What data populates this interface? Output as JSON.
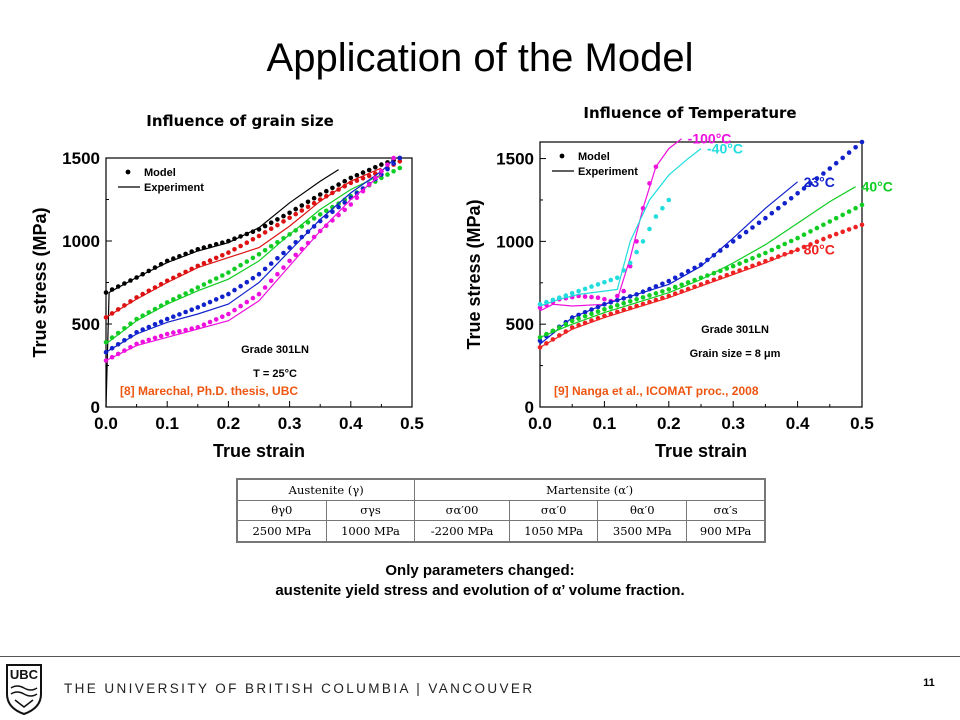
{
  "slide": {
    "title": "Application of the Model",
    "note_line1": "Only parameters changed:",
    "note_line2": "austenite yield stress and evolution of α’ volume fraction.",
    "footer": "THE UNIVERSITY OF BRITISH COLUMBIA | VANCOUVER",
    "page_number": "11",
    "logo_text": "UBC"
  },
  "chart_data": [
    {
      "type": "line",
      "title": "Influence of grain size",
      "xlabel": "True strain",
      "ylabel": "True stress (MPa)",
      "xlim": [
        0.0,
        0.5
      ],
      "ylim": [
        0,
        1500
      ],
      "xticks": [
        "0.0",
        "0.1",
        "0.2",
        "0.3",
        "0.4",
        "0.5"
      ],
      "yticks": [
        "0",
        "500",
        "1000",
        "1500"
      ],
      "legend": [
        "Model",
        "Experiment"
      ],
      "legend_position": "top-left",
      "annotations": [
        "Grade 301LN",
        "T = 25°C"
      ],
      "source": "[8] Marechal, Ph.D. thesis, UBC",
      "series": [
        {
          "color": "#000000",
          "model": {
            "x": [
              0.0,
              0.05,
              0.1,
              0.15,
              0.2,
              0.25,
              0.3,
              0.35,
              0.4,
              0.45,
              0.48
            ],
            "y": [
              690,
              780,
              880,
              950,
              1000,
              1070,
              1170,
              1280,
              1380,
              1460,
              1500
            ]
          },
          "experiment": {
            "x": [
              0.0,
              0.005,
              0.01,
              0.05,
              0.1,
              0.15,
              0.2,
              0.25,
              0.3,
              0.35,
              0.38
            ],
            "y": [
              0,
              690,
              700,
              780,
              870,
              940,
              990,
              1080,
              1230,
              1360,
              1430
            ]
          }
        },
        {
          "color": "#dd1111",
          "model": {
            "x": [
              0.0,
              0.05,
              0.1,
              0.15,
              0.2,
              0.25,
              0.3,
              0.35,
              0.4,
              0.45,
              0.48
            ],
            "y": [
              540,
              660,
              760,
              850,
              930,
              1030,
              1140,
              1250,
              1350,
              1420,
              1480
            ]
          },
          "experiment": {
            "x": [
              0.0,
              0.05,
              0.1,
              0.15,
              0.2,
              0.25,
              0.3,
              0.35,
              0.4,
              0.45
            ],
            "y": [
              540,
              650,
              750,
              840,
              900,
              960,
              1090,
              1240,
              1360,
              1440
            ]
          }
        },
        {
          "color": "#11cc22",
          "model": {
            "x": [
              0.0,
              0.05,
              0.1,
              0.15,
              0.2,
              0.25,
              0.3,
              0.35,
              0.4,
              0.45,
              0.48
            ],
            "y": [
              390,
              530,
              630,
              720,
              810,
              920,
              1040,
              1160,
              1270,
              1380,
              1440
            ]
          },
          "experiment": {
            "x": [
              0.0,
              0.05,
              0.1,
              0.15,
              0.2,
              0.25,
              0.3,
              0.35,
              0.4,
              0.45
            ],
            "y": [
              380,
              520,
              620,
              700,
              770,
              880,
              1040,
              1190,
              1310,
              1400
            ]
          }
        },
        {
          "color": "#1122cc",
          "model": {
            "x": [
              0.0,
              0.05,
              0.1,
              0.15,
              0.2,
              0.25,
              0.3,
              0.35,
              0.4,
              0.45,
              0.48
            ],
            "y": [
              330,
              450,
              530,
              600,
              680,
              800,
              960,
              1120,
              1260,
              1400,
              1500
            ]
          },
          "experiment": {
            "x": [
              0.0,
              0.05,
              0.1,
              0.15,
              0.2,
              0.25,
              0.3,
              0.35,
              0.4,
              0.45,
              0.47
            ],
            "y": [
              330,
              440,
              510,
              560,
              620,
              750,
              940,
              1130,
              1290,
              1420,
              1490
            ]
          }
        },
        {
          "color": "#ee11dd",
          "model": {
            "x": [
              0.0,
              0.05,
              0.1,
              0.15,
              0.2,
              0.25,
              0.3,
              0.35,
              0.4,
              0.45,
              0.47
            ],
            "y": [
              280,
              380,
              440,
              480,
              560,
              680,
              880,
              1060,
              1220,
              1420,
              1500
            ]
          },
          "experiment": {
            "x": [
              0.0,
              0.05,
              0.1,
              0.15,
              0.2,
              0.25,
              0.3,
              0.35,
              0.4,
              0.45
            ],
            "y": [
              280,
              370,
              420,
              470,
              520,
              640,
              850,
              1060,
              1250,
              1400
            ]
          }
        }
      ]
    },
    {
      "type": "line",
      "title": "Influence of Temperature",
      "xlabel": "True strain",
      "ylabel": "True stress (MPa)",
      "xlim": [
        0.0,
        0.5
      ],
      "ylim": [
        0,
        1600
      ],
      "xticks": [
        "0.0",
        "0.1",
        "0.2",
        "0.3",
        "0.4",
        "0.5"
      ],
      "yticks": [
        "0",
        "500",
        "1000",
        "1500"
      ],
      "legend": [
        "Model",
        "Experiment"
      ],
      "legend_position": "top-left",
      "annotations": [
        "Grade 301LN",
        "Grain size = 8 μm"
      ],
      "source": "[9] Nanga et al., ICOMAT proc., 2008",
      "series": [
        {
          "name": "-100°C",
          "color": "#ee11dd",
          "model": {
            "x": [
              0.0,
              0.03,
              0.06,
              0.09,
              0.11,
              0.13,
              0.15,
              0.165,
              0.18
            ],
            "y": [
              600,
              650,
              670,
              660,
              640,
              700,
              1000,
              1300,
              1450
            ]
          },
          "experiment": {
            "x": [
              0.0,
              0.02,
              0.05,
              0.1,
              0.12,
              0.14,
              0.16,
              0.18,
              0.2,
              0.22
            ],
            "y": [
              580,
              620,
              610,
              620,
              650,
              900,
              1200,
              1450,
              1560,
              1620
            ]
          }
        },
        {
          "name": "-40°C",
          "color": "#22dddd",
          "model": {
            "x": [
              0.0,
              0.03,
              0.06,
              0.09,
              0.12,
              0.14,
              0.16,
              0.18,
              0.2
            ],
            "y": [
              620,
              660,
              700,
              740,
              780,
              870,
              1000,
              1150,
              1250
            ]
          },
          "experiment": {
            "x": [
              0.0,
              0.03,
              0.06,
              0.1,
              0.12,
              0.14,
              0.17,
              0.2,
              0.23,
              0.25
            ],
            "y": [
              610,
              650,
              680,
              700,
              710,
              1000,
              1250,
              1400,
              1500,
              1560
            ]
          }
        },
        {
          "name": "23°C",
          "color": "#1122cc",
          "model": {
            "x": [
              0.0,
              0.05,
              0.1,
              0.15,
              0.2,
              0.25,
              0.3,
              0.35,
              0.4,
              0.45,
              0.5
            ],
            "y": [
              400,
              540,
              620,
              680,
              760,
              860,
              1000,
              1140,
              1290,
              1440,
              1600
            ]
          },
          "experiment": {
            "x": [
              0.0,
              0.05,
              0.1,
              0.15,
              0.2,
              0.25,
              0.3,
              0.35,
              0.4
            ],
            "y": [
              380,
              540,
              620,
              680,
              740,
              850,
              1020,
              1200,
              1360
            ]
          }
        },
        {
          "name": "40°C",
          "color": "#11cc22",
          "model": {
            "x": [
              0.0,
              0.05,
              0.1,
              0.15,
              0.2,
              0.25,
              0.3,
              0.35,
              0.4,
              0.45,
              0.5
            ],
            "y": [
              420,
              520,
              590,
              650,
              710,
              780,
              850,
              930,
              1020,
              1120,
              1220
            ]
          },
          "experiment": {
            "x": [
              0.0,
              0.05,
              0.1,
              0.15,
              0.2,
              0.25,
              0.3,
              0.35,
              0.4,
              0.45,
              0.49
            ],
            "y": [
              420,
              500,
              570,
              630,
              690,
              770,
              870,
              980,
              1110,
              1240,
              1330
            ]
          }
        },
        {
          "name": "80°C",
          "color": "#ee2222",
          "model": {
            "x": [
              0.0,
              0.05,
              0.1,
              0.15,
              0.2,
              0.25,
              0.3,
              0.35,
              0.4,
              0.45,
              0.5
            ],
            "y": [
              360,
              480,
              550,
              610,
              670,
              740,
              810,
              880,
              950,
              1030,
              1100
            ]
          },
          "experiment": {
            "x": [
              0.0,
              0.05,
              0.1,
              0.15,
              0.2,
              0.25,
              0.3,
              0.35,
              0.4
            ],
            "y": [
              360,
              470,
              540,
              600,
              660,
              730,
              800,
              870,
              950
            ]
          }
        }
      ]
    }
  ],
  "parameter_table": {
    "groups": [
      "Austenite (γ)",
      "Martensite (α′)"
    ],
    "headers": [
      "θγ0",
      "σγs",
      "σα′00",
      "σα′0",
      "θα′0",
      "σα′s"
    ],
    "values": [
      "2500 MPa",
      "1000 MPa",
      "-2200 MPa",
      "1050 MPa",
      "3500 MPa",
      "900 MPa"
    ]
  }
}
